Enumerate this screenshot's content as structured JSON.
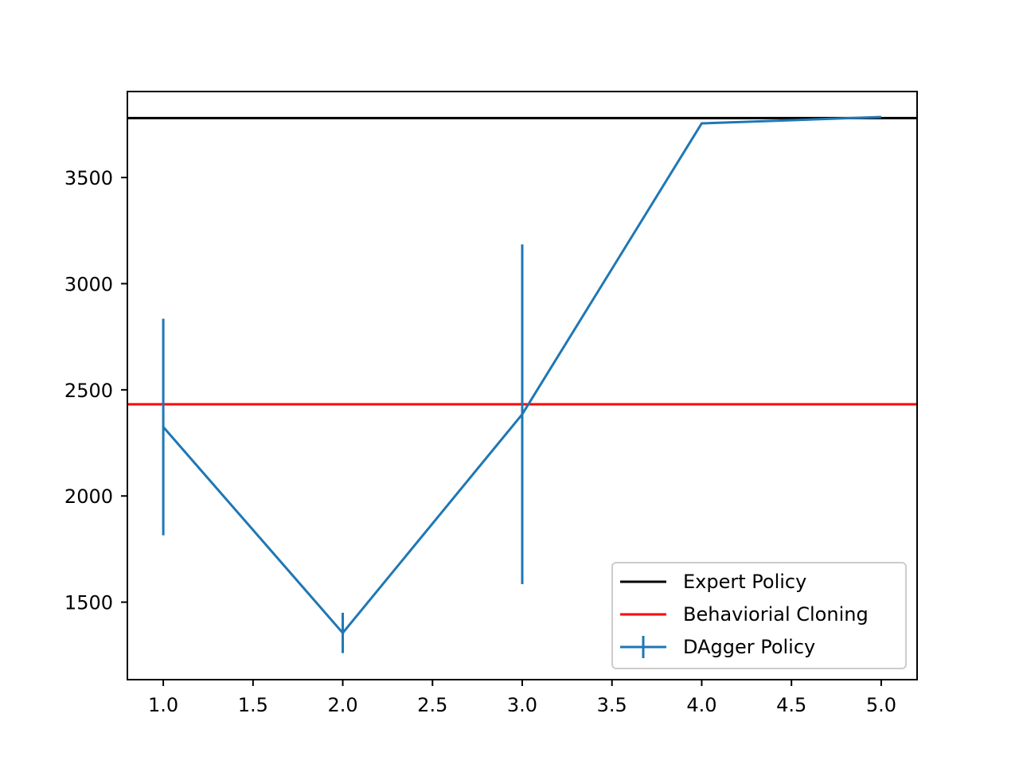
{
  "chart_data": {
    "type": "line",
    "title": "",
    "xlabel": "",
    "ylabel": "",
    "xlim": [
      0.8,
      5.2
    ],
    "ylim": [
      1135,
      3905
    ],
    "x_ticks": [
      1.0,
      1.5,
      2.0,
      2.5,
      3.0,
      3.5,
      4.0,
      4.5,
      5.0
    ],
    "x_tick_labels": [
      "1.0",
      "1.5",
      "2.0",
      "2.5",
      "3.0",
      "3.5",
      "4.0",
      "4.5",
      "5.0"
    ],
    "y_ticks": [
      1500,
      2000,
      2500,
      3000,
      3500
    ],
    "y_tick_labels": [
      "1500",
      "2000",
      "2500",
      "3000",
      "3500"
    ],
    "grid": false,
    "legend_position": "lower-right",
    "reference_lines": [
      {
        "name": "Expert Policy",
        "y": 3780,
        "color": "#000000"
      },
      {
        "name": "Behaviorial Cloning",
        "y": 2432,
        "color": "#ff0000"
      }
    ],
    "series": [
      {
        "name": "DAgger Policy",
        "color": "#1f77b4",
        "x": [
          1,
          2,
          3,
          4,
          5
        ],
        "y": [
          2325,
          1355,
          2385,
          3755,
          3785
        ],
        "error": [
          510,
          95,
          800,
          0,
          0
        ]
      }
    ]
  }
}
